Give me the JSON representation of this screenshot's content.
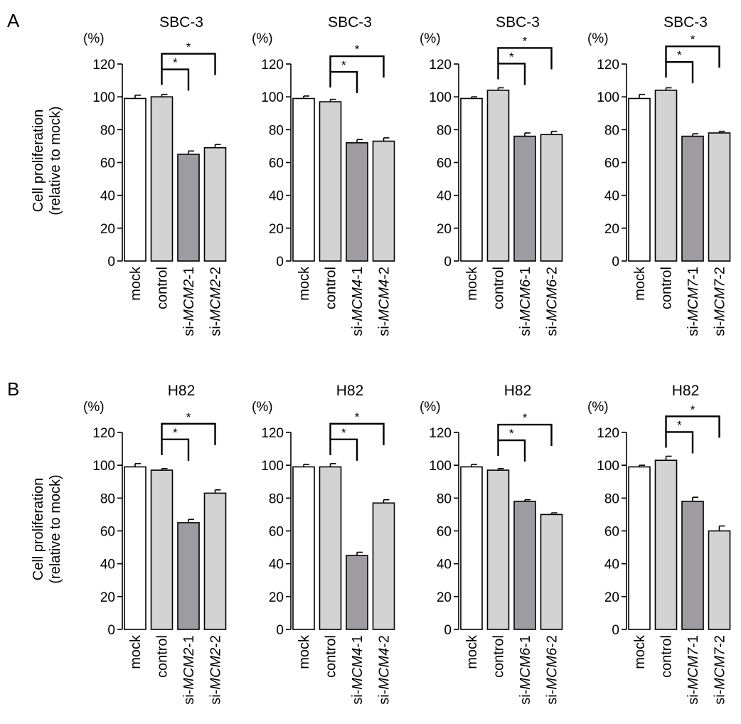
{
  "panels": [
    {
      "letter": "A",
      "ylabel_line1": "Cell proliferation",
      "ylabel_line2": "(relative to mock)"
    },
    {
      "letter": "B",
      "ylabel_line1": "Cell proliferation",
      "ylabel_line2": "(relative to mock)"
    }
  ],
  "colors": {
    "mock": "#ffffff",
    "control": "#d3d3d3",
    "si1": "#9e9ba3",
    "si2": "#d3d3d3",
    "stroke": "#000000"
  },
  "chart_data": [
    {
      "type": "bar",
      "panel": "A",
      "title": "SBC-3",
      "unit": "(%)",
      "gene": "MCM2",
      "categories": [
        [
          "mock",
          ""
        ],
        [
          "control",
          ""
        ],
        [
          "si-",
          "MCM2",
          "-1"
        ],
        [
          "si-",
          "MCM2",
          "-2"
        ]
      ],
      "values": [
        99,
        100,
        65,
        69
      ],
      "errors": [
        2,
        1.5,
        2,
        2
      ],
      "yticks": [
        0,
        20,
        40,
        60,
        80,
        100,
        120
      ],
      "ylim": [
        0,
        120
      ],
      "significance": [
        "*",
        "*"
      ]
    },
    {
      "type": "bar",
      "panel": "A",
      "title": "SBC-3",
      "unit": "(%)",
      "gene": "MCM4",
      "categories": [
        [
          "mock",
          ""
        ],
        [
          "control",
          ""
        ],
        [
          "si-",
          "MCM4",
          "-1"
        ],
        [
          "si-",
          "MCM4",
          "-2"
        ]
      ],
      "values": [
        99,
        97,
        72,
        73
      ],
      "errors": [
        1.5,
        1.5,
        2,
        2
      ],
      "yticks": [
        0,
        20,
        40,
        60,
        80,
        100,
        120
      ],
      "ylim": [
        0,
        120
      ],
      "significance": [
        "*",
        "*"
      ]
    },
    {
      "type": "bar",
      "panel": "A",
      "title": "SBC-3",
      "unit": "(%)",
      "gene": "MCM6",
      "categories": [
        [
          "mock",
          ""
        ],
        [
          "control",
          ""
        ],
        [
          "si-",
          "MCM6",
          "-1"
        ],
        [
          "si-",
          "MCM6",
          "-2"
        ]
      ],
      "values": [
        99,
        104,
        76,
        77
      ],
      "errors": [
        1,
        1.5,
        2,
        2
      ],
      "yticks": [
        0,
        20,
        40,
        60,
        80,
        100,
        120
      ],
      "ylim": [
        0,
        120
      ],
      "significance": [
        "*",
        "*"
      ]
    },
    {
      "type": "bar",
      "panel": "A",
      "title": "SBC-3",
      "unit": "(%)",
      "gene": "MCM7",
      "categories": [
        [
          "mock",
          ""
        ],
        [
          "control",
          ""
        ],
        [
          "si-",
          "MCM7",
          "-1"
        ],
        [
          "si-",
          "MCM7",
          "-2"
        ]
      ],
      "values": [
        99,
        104,
        76,
        78
      ],
      "errors": [
        2.5,
        1.5,
        1.5,
        1
      ],
      "yticks": [
        0,
        20,
        40,
        60,
        80,
        100,
        120
      ],
      "ylim": [
        0,
        120
      ],
      "significance": [
        "*",
        "*"
      ]
    },
    {
      "type": "bar",
      "panel": "B",
      "title": "H82",
      "unit": "(%)",
      "gene": "MCM2",
      "categories": [
        [
          "mock",
          ""
        ],
        [
          "control",
          ""
        ],
        [
          "si-",
          "MCM2",
          "-1"
        ],
        [
          "si-",
          "MCM2",
          "-2"
        ]
      ],
      "values": [
        99,
        97,
        65,
        83
      ],
      "errors": [
        2,
        1,
        2,
        2
      ],
      "yticks": [
        0,
        20,
        40,
        60,
        80,
        100,
        120
      ],
      "ylim": [
        0,
        120
      ],
      "significance": [
        "*",
        "*"
      ]
    },
    {
      "type": "bar",
      "panel": "B",
      "title": "H82",
      "unit": "(%)",
      "gene": "MCM4",
      "categories": [
        [
          "mock",
          ""
        ],
        [
          "control",
          ""
        ],
        [
          "si-",
          "MCM4",
          "-1"
        ],
        [
          "si-",
          "MCM4",
          "-2"
        ]
      ],
      "values": [
        99,
        99,
        45,
        77
      ],
      "errors": [
        1.5,
        2,
        2,
        2
      ],
      "yticks": [
        0,
        20,
        40,
        60,
        80,
        100,
        120
      ],
      "ylim": [
        0,
        120
      ],
      "significance": [
        "*",
        "*"
      ]
    },
    {
      "type": "bar",
      "panel": "B",
      "title": "H82",
      "unit": "(%)",
      "gene": "MCM6",
      "categories": [
        [
          "mock",
          ""
        ],
        [
          "control",
          ""
        ],
        [
          "si-",
          "MCM6",
          "-1"
        ],
        [
          "si-",
          "MCM6",
          "-2"
        ]
      ],
      "values": [
        99,
        97,
        78,
        70
      ],
      "errors": [
        1.5,
        1,
        1,
        1
      ],
      "yticks": [
        0,
        20,
        40,
        60,
        80,
        100,
        120
      ],
      "ylim": [
        0,
        120
      ],
      "significance": [
        "*",
        "*"
      ]
    },
    {
      "type": "bar",
      "panel": "B",
      "title": "H82",
      "unit": "(%)",
      "gene": "MCM7",
      "categories": [
        [
          "mock",
          ""
        ],
        [
          "control",
          ""
        ],
        [
          "si-",
          "MCM7",
          "-1"
        ],
        [
          "si-",
          "MCM7",
          "-2"
        ]
      ],
      "values": [
        99,
        103,
        78,
        60
      ],
      "errors": [
        1,
        2.5,
        2.5,
        3
      ],
      "yticks": [
        0,
        20,
        40,
        60,
        80,
        100,
        120
      ],
      "ylim": [
        0,
        120
      ],
      "significance": [
        "*",
        "*"
      ]
    }
  ]
}
